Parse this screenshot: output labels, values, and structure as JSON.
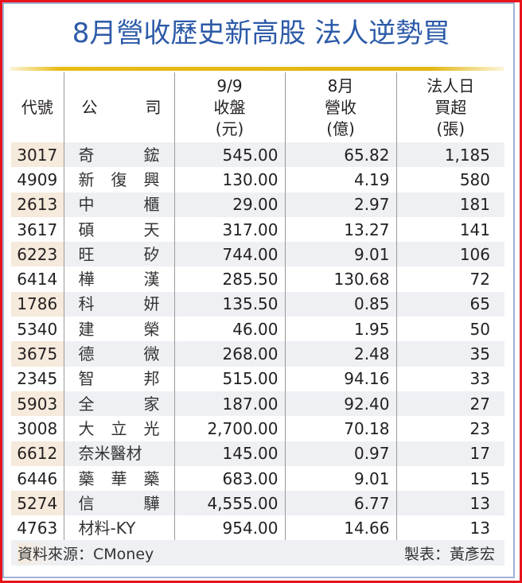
{
  "title": "8月營收歷史新高股 法人逆勢買",
  "colors": {
    "title": "#2c5aa8",
    "outer_border": "#e8141b",
    "inner_border": "#9fb1d3",
    "rule": "#e2b510",
    "row_shade": "#eef0f4",
    "code_shade": "#f5eadb"
  },
  "headers": {
    "code": "代號",
    "company_1": "公",
    "company_2": "司",
    "close_1": "9/9",
    "close_2": "收盤",
    "close_3": "(元)",
    "revenue_1": "8月",
    "revenue_2": "營收",
    "revenue_3": "(億)",
    "buy_1": "法人日",
    "buy_2": "買超",
    "buy_3": "(張)"
  },
  "rows": [
    {
      "code": "3017",
      "name": [
        "奇",
        "鋐"
      ],
      "close": "545.00",
      "revenue": "65.82",
      "net_buy": "1,185"
    },
    {
      "code": "4909",
      "name": [
        "新",
        "復",
        "興"
      ],
      "close": "130.00",
      "revenue": "4.19",
      "net_buy": "580"
    },
    {
      "code": "2613",
      "name": [
        "中",
        "櫃"
      ],
      "close": "29.00",
      "revenue": "2.97",
      "net_buy": "181"
    },
    {
      "code": "3617",
      "name": [
        "碩",
        "天"
      ],
      "close": "317.00",
      "revenue": "13.27",
      "net_buy": "141"
    },
    {
      "code": "6223",
      "name": [
        "旺",
        "矽"
      ],
      "close": "744.00",
      "revenue": "9.01",
      "net_buy": "106"
    },
    {
      "code": "6414",
      "name": [
        "樺",
        "漢"
      ],
      "close": "285.50",
      "revenue": "130.68",
      "net_buy": "72"
    },
    {
      "code": "1786",
      "name": [
        "科",
        "妍"
      ],
      "close": "135.50",
      "revenue": "0.85",
      "net_buy": "65"
    },
    {
      "code": "5340",
      "name": [
        "建",
        "榮"
      ],
      "close": "46.00",
      "revenue": "1.95",
      "net_buy": "50"
    },
    {
      "code": "3675",
      "name": [
        "德",
        "微"
      ],
      "close": "268.00",
      "revenue": "2.48",
      "net_buy": "35"
    },
    {
      "code": "2345",
      "name": [
        "智",
        "邦"
      ],
      "close": "515.00",
      "revenue": "94.16",
      "net_buy": "33"
    },
    {
      "code": "5903",
      "name": [
        "全",
        "家"
      ],
      "close": "187.00",
      "revenue": "92.40",
      "net_buy": "27"
    },
    {
      "code": "3008",
      "name": [
        "大",
        "立",
        "光"
      ],
      "close": "2,700.00",
      "revenue": "70.18",
      "net_buy": "23"
    },
    {
      "code": "6612",
      "name": [
        "奈米醫材"
      ],
      "close": "145.00",
      "revenue": "0.97",
      "net_buy": "17"
    },
    {
      "code": "6446",
      "name": [
        "藥",
        "華",
        "藥"
      ],
      "close": "683.00",
      "revenue": "9.01",
      "net_buy": "15"
    },
    {
      "code": "5274",
      "name": [
        "信",
        "驊"
      ],
      "close": "4,555.00",
      "revenue": "6.77",
      "net_buy": "13"
    },
    {
      "code": "4763",
      "name": [
        "材料-KY"
      ],
      "close": "954.00",
      "revenue": "14.66",
      "net_buy": "13"
    }
  ],
  "footer": {
    "source": "資料來源：CMoney",
    "author": "製表：黃彥宏"
  }
}
